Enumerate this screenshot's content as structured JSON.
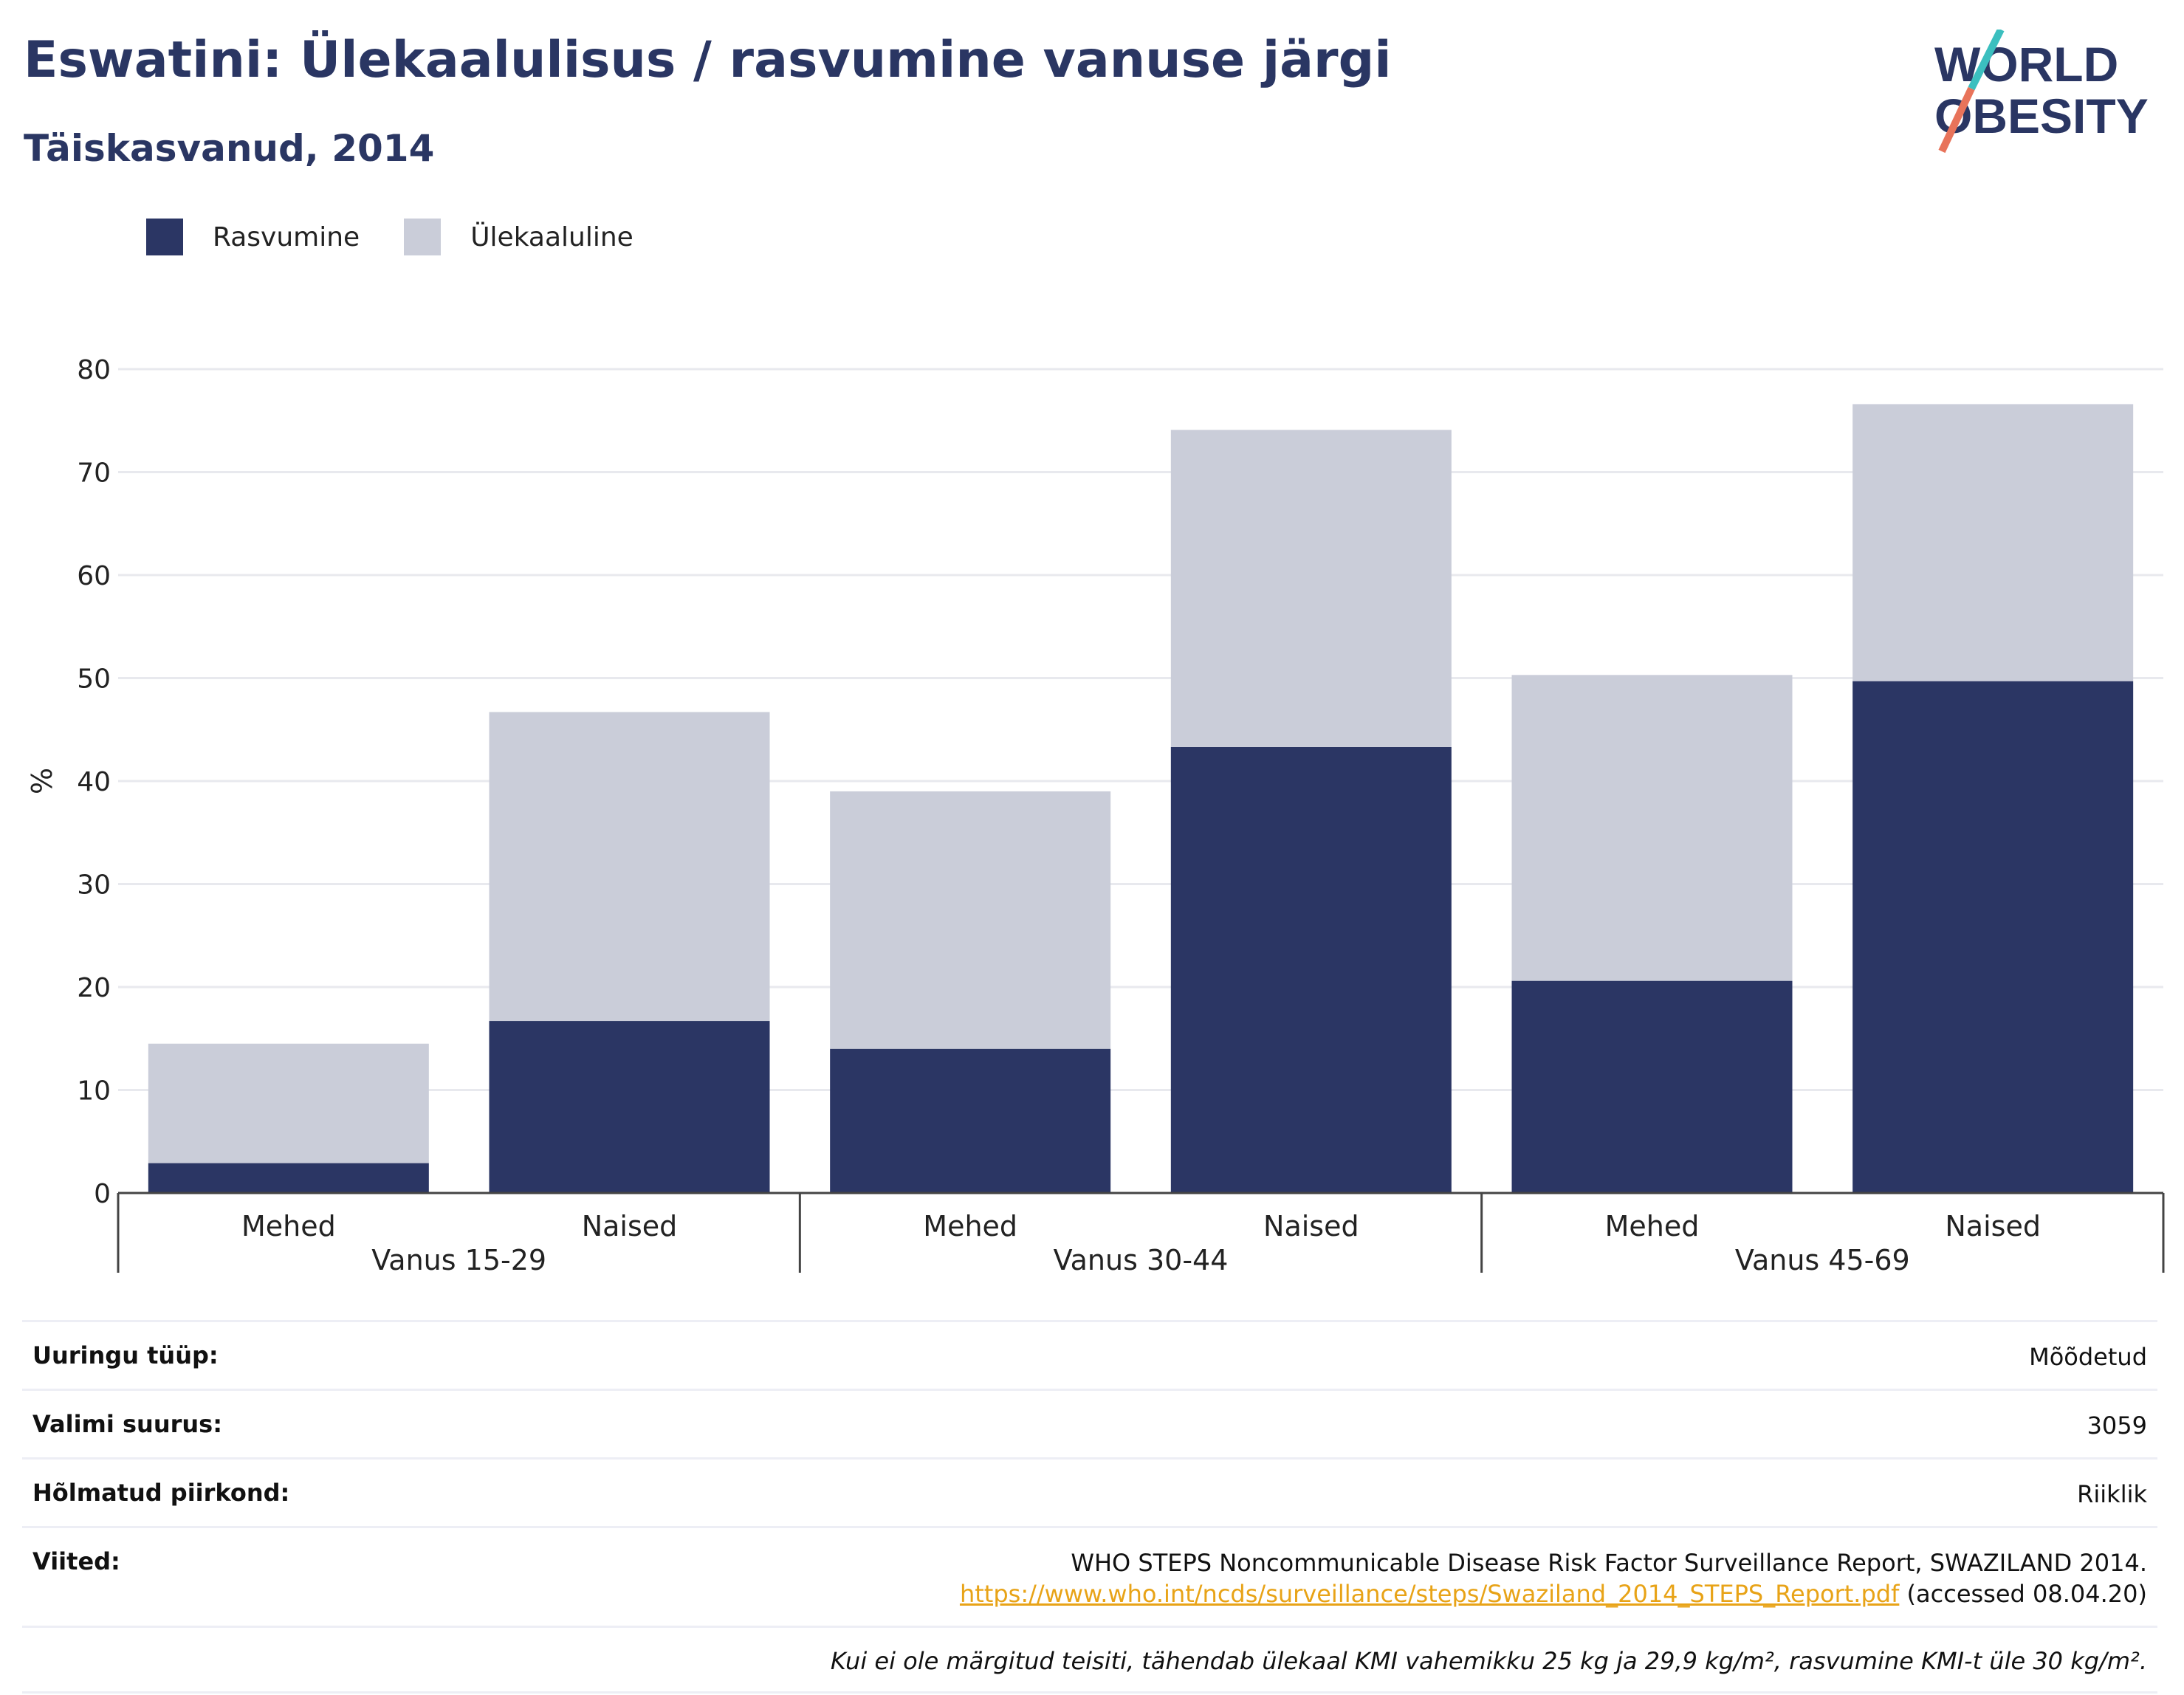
{
  "header": {
    "title": "Eswatini: Ülekaalulisus / rasvumine vanuse järgi",
    "subtitle": "Täiskasvanud, 2014"
  },
  "logo": {
    "line1": "WORLD",
    "line2": "OBESITY",
    "colors": {
      "text": "#2a3663",
      "slash_top": "#3bbfbf",
      "slash_bottom": "#e8735a"
    }
  },
  "colors": {
    "obesity": "#2b3664",
    "overweight": "#cacdd9",
    "grid": "#e8e9ee",
    "axis": "#444444"
  },
  "chart_data": {
    "type": "bar",
    "stacked": true,
    "ylabel": "%",
    "ylim": [
      0,
      80
    ],
    "yticks": [
      0,
      10,
      20,
      30,
      40,
      50,
      60,
      70,
      80
    ],
    "grid": true,
    "legend_position": "top-left",
    "groups": [
      {
        "label": "Vanus 15-29",
        "categories": [
          "Mehed",
          "Naised"
        ]
      },
      {
        "label": "Vanus 30-44",
        "categories": [
          "Mehed",
          "Naised"
        ]
      },
      {
        "label": "Vanus 45-69",
        "categories": [
          "Mehed",
          "Naised"
        ]
      }
    ],
    "categories": [
      "Mehed",
      "Naised",
      "Mehed",
      "Naised",
      "Mehed",
      "Naised"
    ],
    "series": [
      {
        "name": "Rasvumine",
        "values": [
          2.9,
          16.7,
          14.0,
          43.3,
          20.6,
          49.7
        ]
      },
      {
        "name": "Ülekaaluline",
        "values": [
          11.6,
          30.0,
          25.0,
          30.8,
          29.7,
          26.9
        ]
      }
    ]
  },
  "info": {
    "rows": [
      {
        "label": "Uuringu tüüp:",
        "value": "Mõõdetud"
      },
      {
        "label": "Valimi suurus:",
        "value": "3059"
      },
      {
        "label": "Hõlmatud piirkond:",
        "value": "Riiklik"
      }
    ],
    "references": {
      "label": "Viited:",
      "text": "WHO STEPS Noncommunicable Disease Risk Factor Surveillance Report, SWAZILAND 2014.",
      "link": "https://www.who.int/ncds/surveillance/steps/Swaziland_2014_STEPS_Report.pdf",
      "accessed": "(accessed 08.04.20)"
    },
    "note": "Kui ei ole märgitud teisiti, tähendab ülekaal KMI vahemikku 25 kg ja 29,9 kg/m², rasvumine KMI-t üle 30 kg/m²."
  }
}
